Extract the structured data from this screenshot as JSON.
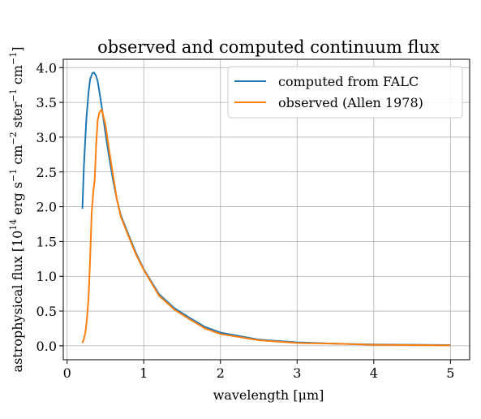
{
  "chart_data": {
    "type": "line",
    "title": "observed and computed continuum flux",
    "xlabel": "wavelength [μm]",
    "ylabel_parts": {
      "prefix": "astrophysical flux [10",
      "exp14": "14",
      "erg": " erg s",
      "exp_s": "−1",
      "cm2": " cm",
      "exp_cm2": "−2",
      "ster": " ster",
      "exp_ster": "−1",
      "cm": " cm",
      "exp_cm": "−1",
      "suffix": "]"
    },
    "xlim": [
      -0.05,
      5.25
    ],
    "ylim": [
      -0.2,
      4.12
    ],
    "xticks": [
      0,
      1,
      2,
      3,
      4,
      5
    ],
    "xtick_labels": [
      "0",
      "1",
      "2",
      "3",
      "4",
      "5"
    ],
    "yticks": [
      0.0,
      0.5,
      1.0,
      1.5,
      2.0,
      2.5,
      3.0,
      3.5,
      4.0
    ],
    "ytick_labels": [
      "0.0",
      "0.5",
      "1.0",
      "1.5",
      "2.0",
      "2.5",
      "3.0",
      "3.5",
      "4.0"
    ],
    "grid": true,
    "legend_position": "top-right",
    "series": [
      {
        "name": "computed from FALC",
        "color": "#1f77b4",
        "x": [
          0.2,
          0.22,
          0.25,
          0.28,
          0.3,
          0.33,
          0.35,
          0.38,
          0.4,
          0.45,
          0.5,
          0.55,
          0.6,
          0.65,
          0.7,
          0.8,
          0.9,
          1.0,
          1.2,
          1.4,
          1.6,
          1.8,
          2.0,
          2.5,
          3.0,
          3.5,
          4.0,
          4.5,
          5.0
        ],
        "y": [
          1.97,
          2.6,
          3.25,
          3.65,
          3.83,
          3.92,
          3.93,
          3.88,
          3.8,
          3.45,
          3.06,
          2.7,
          2.38,
          2.1,
          1.88,
          1.6,
          1.33,
          1.1,
          0.74,
          0.54,
          0.4,
          0.27,
          0.19,
          0.09,
          0.05,
          0.03,
          0.02,
          0.015,
          0.01
        ]
      },
      {
        "name": "observed (Allen 1978)",
        "color": "#ff7f0e",
        "x": [
          0.2,
          0.22,
          0.24,
          0.26,
          0.28,
          0.3,
          0.32,
          0.34,
          0.36,
          0.38,
          0.4,
          0.42,
          0.45,
          0.5,
          0.55,
          0.6,
          0.65,
          0.7,
          0.8,
          0.9,
          1.0,
          1.2,
          1.4,
          1.6,
          1.8,
          2.0,
          2.5,
          3.0,
          3.5,
          4.0,
          4.5,
          5.0
        ],
        "y": [
          0.04,
          0.1,
          0.2,
          0.4,
          0.7,
          1.25,
          1.9,
          2.2,
          2.4,
          2.9,
          3.25,
          3.35,
          3.4,
          3.18,
          2.8,
          2.45,
          2.1,
          1.86,
          1.58,
          1.31,
          1.09,
          0.72,
          0.52,
          0.38,
          0.25,
          0.17,
          0.08,
          0.04,
          0.03,
          0.015,
          0.01,
          0.005
        ]
      }
    ]
  }
}
